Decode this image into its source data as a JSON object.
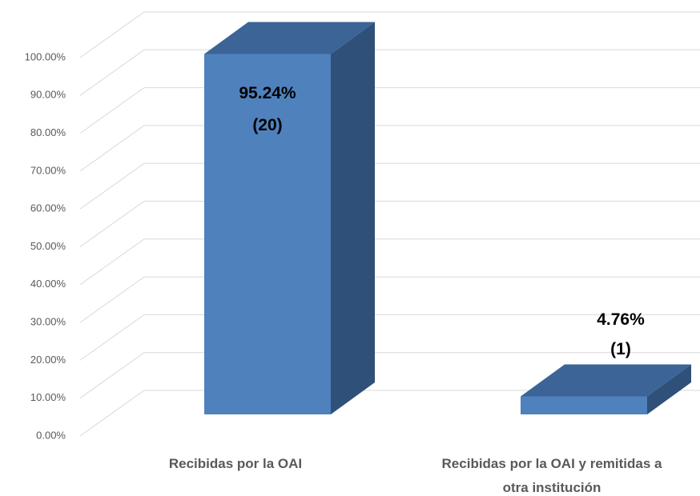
{
  "chart_data": {
    "type": "bar3d",
    "categories": [
      "Recibidas por la OAI",
      "Recibidas por la OAI y remitidas a otra institución"
    ],
    "values": [
      95.24,
      4.76
    ],
    "value_labels": [
      "95.24%",
      "4.76%"
    ],
    "counts": [
      20,
      1
    ],
    "count_labels": [
      "(20)",
      "(1)"
    ],
    "color": "#4f81bd",
    "ylim": [
      0,
      100
    ],
    "yticks": [
      {
        "value": 0,
        "label": "0.00%"
      },
      {
        "value": 10,
        "label": "10.00%"
      },
      {
        "value": 20,
        "label": "20.00%"
      },
      {
        "value": 30,
        "label": "30.00%"
      },
      {
        "value": 40,
        "label": "40.00%"
      },
      {
        "value": 50,
        "label": "50.00%"
      },
      {
        "value": 60,
        "label": "60.00%"
      },
      {
        "value": 70,
        "label": "70.00%"
      },
      {
        "value": 80,
        "label": "80.00%"
      },
      {
        "value": 90,
        "label": "90.00%"
      },
      {
        "value": 100,
        "label": "100.00%"
      }
    ],
    "grid": true
  }
}
